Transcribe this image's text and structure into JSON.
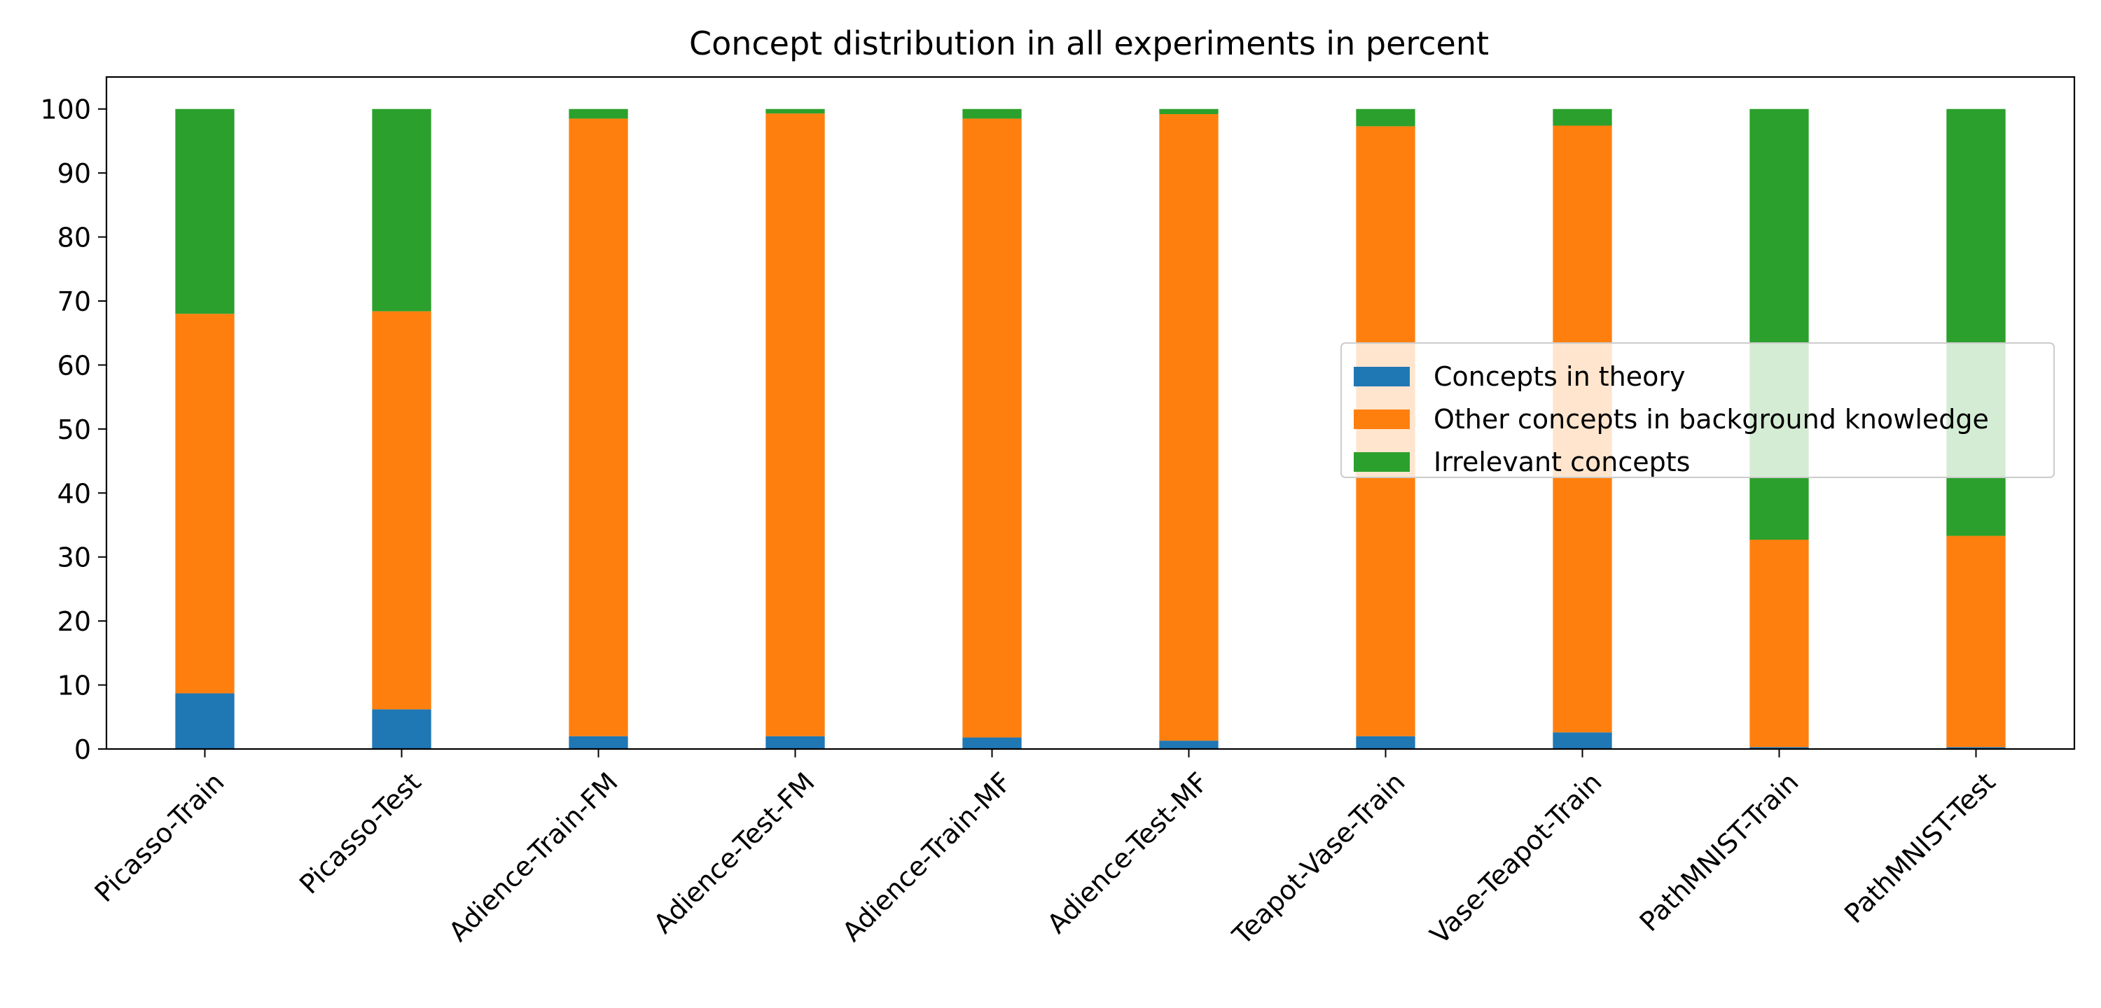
{
  "chart_data": {
    "type": "bar",
    "stacked": true,
    "title": "Concept distribution in all experiments in percent",
    "xlabel": "",
    "ylabel": "",
    "ylim": [
      0,
      105
    ],
    "yticks": [
      0,
      10,
      20,
      30,
      40,
      50,
      60,
      70,
      80,
      90,
      100
    ],
    "grid": false,
    "legend_position": "center-right",
    "categories": [
      "Picasso-Train",
      "Picasso-Test",
      "Adience-Train-FM",
      "Adience-Test-FM",
      "Adience-Train-MF",
      "Adience-Test-MF",
      "Teapot-Vase-Train",
      "Vase-Teapot-Train",
      "PathMNIST-Train",
      "PathMNIST-Test"
    ],
    "series": [
      {
        "name": "Concepts in theory",
        "color": "#1f77b4",
        "values": [
          8.7,
          6.2,
          2.0,
          2.0,
          1.8,
          1.3,
          2.0,
          2.6,
          0.3,
          0.3
        ]
      },
      {
        "name": "Other concepts in background knowledge",
        "color": "#ff7f0e",
        "values": [
          59.3,
          62.2,
          96.5,
          97.3,
          96.7,
          97.9,
          95.3,
          94.8,
          32.4,
          33.0
        ]
      },
      {
        "name": "Irrelevant concepts",
        "color": "#2ca02c",
        "values": [
          32.0,
          31.6,
          1.5,
          0.7,
          1.5,
          0.8,
          2.7,
          2.6,
          67.3,
          66.7
        ]
      }
    ]
  }
}
